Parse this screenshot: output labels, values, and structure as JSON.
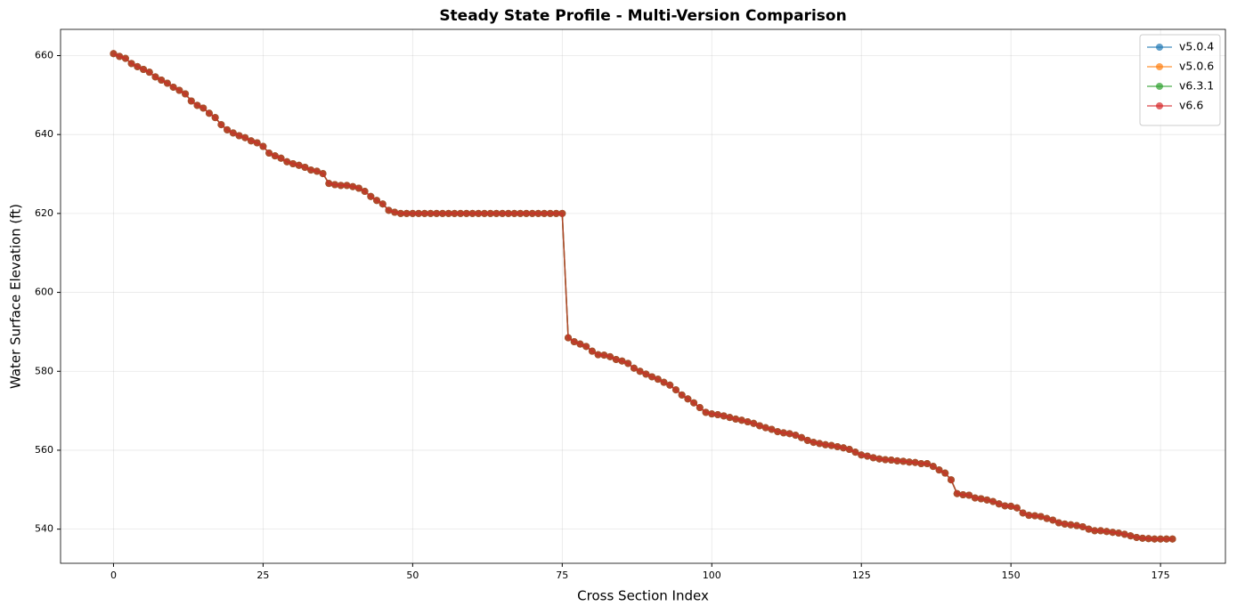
{
  "chart_data": {
    "type": "line",
    "title": "Steady State Profile - Multi-Version Comparison",
    "xlabel": "Cross Section Index",
    "ylabel": "Water Surface Elevation (ft)",
    "x": [
      0,
      1,
      2,
      3,
      4,
      5,
      6,
      7,
      8,
      9,
      10,
      11,
      12,
      13,
      14,
      15,
      16,
      17,
      18,
      19,
      20,
      21,
      22,
      23,
      24,
      25,
      26,
      27,
      28,
      29,
      30,
      31,
      32,
      33,
      34,
      35,
      36,
      37,
      38,
      39,
      40,
      41,
      42,
      43,
      44,
      45,
      46,
      47,
      48,
      49,
      50,
      51,
      52,
      53,
      54,
      55,
      56,
      57,
      58,
      59,
      60,
      61,
      62,
      63,
      64,
      65,
      66,
      67,
      68,
      69,
      70,
      71,
      72,
      73,
      74,
      75,
      76,
      77,
      78,
      79,
      80,
      81,
      82,
      83,
      84,
      85,
      86,
      87,
      88,
      89,
      90,
      91,
      92,
      93,
      94,
      95,
      96,
      97,
      98,
      99,
      100,
      101,
      102,
      103,
      104,
      105,
      106,
      107,
      108,
      109,
      110,
      111,
      112,
      113,
      114,
      115,
      116,
      117,
      118,
      119,
      120,
      121,
      122,
      123,
      124,
      125,
      126,
      127,
      128,
      129,
      130,
      131,
      132,
      133,
      134,
      135,
      136,
      137,
      138,
      139,
      140,
      141,
      142,
      143,
      144,
      145,
      146,
      147,
      148,
      149,
      150,
      151,
      152,
      153,
      154,
      155,
      156,
      157,
      158,
      159,
      160,
      161,
      162,
      163,
      164,
      165,
      166,
      167,
      168,
      169,
      170,
      171,
      172,
      173,
      174,
      175,
      176,
      177
    ],
    "series": [
      {
        "name": "v5.0.4",
        "color": "#1f77b4",
        "values": [
          660.5,
          659.8,
          659.3,
          658.0,
          657.2,
          656.5,
          655.8,
          654.6,
          653.8,
          653.0,
          652.0,
          651.2,
          650.3,
          648.5,
          647.4,
          646.7,
          645.4,
          644.3,
          642.5,
          641.2,
          640.4,
          639.7,
          639.2,
          638.4,
          637.9,
          637.0,
          635.3,
          634.6,
          634.0,
          633.1,
          632.6,
          632.2,
          631.7,
          631.0,
          630.7,
          630.1,
          627.6,
          627.3,
          627.1,
          627.1,
          626.8,
          626.4,
          625.6,
          624.3,
          623.3,
          622.4,
          620.8,
          620.3,
          620,
          620,
          620,
          620,
          620,
          620,
          620,
          620,
          620,
          620,
          620,
          620,
          620,
          620,
          620,
          620,
          620,
          620,
          620,
          620,
          620,
          620,
          620,
          620,
          620,
          620,
          620,
          620,
          588.5,
          587.5,
          586.9,
          586.3,
          585.1,
          584.2,
          584.1,
          583.7,
          583.0,
          582.6,
          582.0,
          580.8,
          580.0,
          579.3,
          578.6,
          578.0,
          577.2,
          576.5,
          575.3,
          574.0,
          573.0,
          572.0,
          570.8,
          569.6,
          569.2,
          569.0,
          568.7,
          568.3,
          567.9,
          567.6,
          567.2,
          566.8,
          566.2,
          565.7,
          565.3,
          564.7,
          564.4,
          564.2,
          563.8,
          563.2,
          562.5,
          562.0,
          561.7,
          561.4,
          561.2,
          560.9,
          560.6,
          560.2,
          559.5,
          558.8,
          558.5,
          558.1,
          557.8,
          557.6,
          557.5,
          557.3,
          557.2,
          557.0,
          556.9,
          556.6,
          556.6,
          555.9,
          555.0,
          554.2,
          552.5,
          549.0,
          548.7,
          548.6,
          547.9,
          547.7,
          547.4,
          547.0,
          546.4,
          545.9,
          545.8,
          545.4,
          544.1,
          543.5,
          543.4,
          543.2,
          542.7,
          542.3,
          541.6,
          541.3,
          541.1,
          540.9,
          540.6,
          540.0,
          539.6,
          539.6,
          539.4,
          539.2,
          539.0,
          538.7,
          538.3,
          537.9,
          537.7,
          537.6,
          537.5,
          537.5,
          537.5,
          537.5
        ]
      },
      {
        "name": "v5.0.6",
        "color": "#ff7f0e",
        "values": [
          660.5,
          659.8,
          659.3,
          658.0,
          657.2,
          656.5,
          655.8,
          654.6,
          653.8,
          653.0,
          652.0,
          651.2,
          650.3,
          648.5,
          647.4,
          646.7,
          645.4,
          644.3,
          642.5,
          641.2,
          640.4,
          639.7,
          639.2,
          638.4,
          637.9,
          637.0,
          635.3,
          634.6,
          634.0,
          633.1,
          632.6,
          632.2,
          631.7,
          631.0,
          630.7,
          630.1,
          627.6,
          627.3,
          627.1,
          627.1,
          626.8,
          626.4,
          625.6,
          624.3,
          623.3,
          622.4,
          620.8,
          620.3,
          620,
          620,
          620,
          620,
          620,
          620,
          620,
          620,
          620,
          620,
          620,
          620,
          620,
          620,
          620,
          620,
          620,
          620,
          620,
          620,
          620,
          620,
          620,
          620,
          620,
          620,
          620,
          620,
          588.5,
          587.5,
          586.9,
          586.3,
          585.1,
          584.2,
          584.1,
          583.7,
          583.0,
          582.6,
          582.0,
          580.8,
          580.0,
          579.3,
          578.6,
          578.0,
          577.2,
          576.5,
          575.3,
          574.0,
          573.0,
          572.0,
          570.8,
          569.6,
          569.2,
          569.0,
          568.7,
          568.3,
          567.9,
          567.6,
          567.2,
          566.8,
          566.2,
          565.7,
          565.3,
          564.7,
          564.4,
          564.2,
          563.8,
          563.2,
          562.5,
          562.0,
          561.7,
          561.4,
          561.2,
          560.9,
          560.6,
          560.2,
          559.5,
          558.8,
          558.5,
          558.1,
          557.8,
          557.6,
          557.5,
          557.3,
          557.2,
          557.0,
          556.9,
          556.6,
          556.6,
          555.9,
          555.0,
          554.2,
          552.5,
          549.0,
          548.7,
          548.6,
          547.9,
          547.7,
          547.4,
          547.0,
          546.4,
          545.9,
          545.8,
          545.4,
          544.1,
          543.5,
          543.4,
          543.2,
          542.7,
          542.3,
          541.6,
          541.3,
          541.1,
          540.9,
          540.6,
          540.0,
          539.6,
          539.6,
          539.4,
          539.2,
          539.0,
          538.7,
          538.3,
          537.9,
          537.7,
          537.6,
          537.5,
          537.5,
          537.5,
          537.5
        ]
      },
      {
        "name": "v6.3.1",
        "color": "#2ca02c",
        "values": [
          660.5,
          659.8,
          659.3,
          658.0,
          657.2,
          656.5,
          655.8,
          654.6,
          653.8,
          653.0,
          652.0,
          651.2,
          650.3,
          648.5,
          647.4,
          646.7,
          645.4,
          644.3,
          642.5,
          641.2,
          640.4,
          639.7,
          639.2,
          638.4,
          637.9,
          637.0,
          635.3,
          634.6,
          634.0,
          633.1,
          632.6,
          632.2,
          631.7,
          631.0,
          630.7,
          630.1,
          627.6,
          627.3,
          627.1,
          627.1,
          626.8,
          626.4,
          625.6,
          624.3,
          623.3,
          622.4,
          620.8,
          620.3,
          620,
          620,
          620,
          620,
          620,
          620,
          620,
          620,
          620,
          620,
          620,
          620,
          620,
          620,
          620,
          620,
          620,
          620,
          620,
          620,
          620,
          620,
          620,
          620,
          620,
          620,
          620,
          620,
          588.5,
          587.5,
          586.9,
          586.3,
          585.1,
          584.2,
          584.1,
          583.7,
          583.0,
          582.6,
          582.0,
          580.8,
          580.0,
          579.3,
          578.6,
          578.0,
          577.2,
          576.5,
          575.3,
          574.0,
          573.0,
          572.0,
          570.8,
          569.6,
          569.2,
          569.0,
          568.7,
          568.3,
          567.9,
          567.6,
          567.2,
          566.8,
          566.2,
          565.7,
          565.3,
          564.7,
          564.4,
          564.2,
          563.8,
          563.2,
          562.5,
          562.0,
          561.7,
          561.4,
          561.2,
          560.9,
          560.6,
          560.2,
          559.5,
          558.8,
          558.5,
          558.1,
          557.8,
          557.6,
          557.5,
          557.3,
          557.2,
          557.0,
          556.9,
          556.6,
          556.6,
          555.9,
          555.0,
          554.2,
          552.5,
          549.0,
          548.7,
          548.6,
          547.9,
          547.7,
          547.4,
          547.0,
          546.4,
          545.9,
          545.8,
          545.4,
          544.1,
          543.5,
          543.4,
          543.2,
          542.7,
          542.3,
          541.6,
          541.3,
          541.1,
          540.9,
          540.6,
          540.0,
          539.6,
          539.6,
          539.4,
          539.2,
          539.0,
          538.7,
          538.3,
          537.9,
          537.7,
          537.6,
          537.5,
          537.5,
          537.5,
          537.5
        ]
      },
      {
        "name": "v6.6",
        "color": "#d62728",
        "values": [
          660.5,
          659.8,
          659.3,
          658.0,
          657.2,
          656.5,
          655.8,
          654.6,
          653.8,
          653.0,
          652.0,
          651.2,
          650.3,
          648.5,
          647.4,
          646.7,
          645.4,
          644.3,
          642.5,
          641.2,
          640.4,
          639.7,
          639.2,
          638.4,
          637.9,
          637.0,
          635.3,
          634.6,
          634.0,
          633.1,
          632.6,
          632.2,
          631.7,
          631.0,
          630.7,
          630.1,
          627.6,
          627.3,
          627.1,
          627.1,
          626.8,
          626.4,
          625.6,
          624.3,
          623.3,
          622.4,
          620.8,
          620.3,
          620,
          620,
          620,
          620,
          620,
          620,
          620,
          620,
          620,
          620,
          620,
          620,
          620,
          620,
          620,
          620,
          620,
          620,
          620,
          620,
          620,
          620,
          620,
          620,
          620,
          620,
          620,
          620,
          588.5,
          587.5,
          586.9,
          586.3,
          585.1,
          584.2,
          584.1,
          583.7,
          583.0,
          582.6,
          582.0,
          580.8,
          580.0,
          579.3,
          578.6,
          578.0,
          577.2,
          576.5,
          575.3,
          574.0,
          573.0,
          572.0,
          570.8,
          569.6,
          569.2,
          569.0,
          568.7,
          568.3,
          567.9,
          567.6,
          567.2,
          566.8,
          566.2,
          565.7,
          565.3,
          564.7,
          564.4,
          564.2,
          563.8,
          563.2,
          562.5,
          562.0,
          561.7,
          561.4,
          561.2,
          560.9,
          560.6,
          560.2,
          559.5,
          558.8,
          558.5,
          558.1,
          557.8,
          557.6,
          557.5,
          557.3,
          557.2,
          557.0,
          556.9,
          556.6,
          556.6,
          555.9,
          555.0,
          554.2,
          552.5,
          549.0,
          548.7,
          548.6,
          547.9,
          547.7,
          547.4,
          547.0,
          546.4,
          545.9,
          545.8,
          545.4,
          544.1,
          543.5,
          543.4,
          543.2,
          542.7,
          542.3,
          541.6,
          541.3,
          541.1,
          540.9,
          540.6,
          540.0,
          539.6,
          539.6,
          539.4,
          539.2,
          539.0,
          538.7,
          538.3,
          537.9,
          537.7,
          537.6,
          537.5,
          537.5,
          537.5,
          537.5
        ]
      }
    ],
    "xlim": [
      -8.85,
      185.85
    ],
    "xticks": [
      0,
      25,
      50,
      75,
      100,
      125,
      150,
      175
    ],
    "ylim": [
      531.35,
      666.65
    ],
    "yticks": [
      540,
      560,
      580,
      600,
      620,
      640,
      660
    ],
    "grid": true,
    "legend": "upper right",
    "markers": true
  }
}
